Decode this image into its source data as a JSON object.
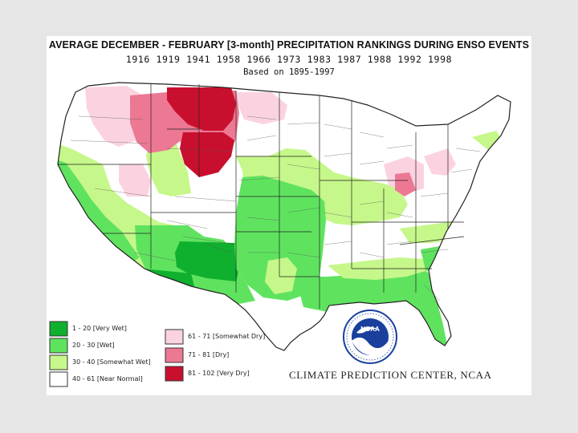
{
  "title": "AVERAGE DECEMBER - FEBRUARY [3-month] PRECIPITATION RANKINGS DURING ENSO EVENTS",
  "years": "1916 1919 1941 1958 1966 1973 1983 1987 1988 1992 1998",
  "basis": "Based on 1895-1997",
  "credit": "CLIMATE PREDICTION CENTER, NCAA",
  "logo_text": "NOAA",
  "legend": [
    {
      "label": "1 - 20 [Very Wet]",
      "color": "#0fb02e"
    },
    {
      "label": "20 - 30 [Wet]",
      "color": "#5fe35f"
    },
    {
      "label": "30 - 40 [Somewhat Wet]",
      "color": "#c6f78a"
    },
    {
      "label": "40 - 61 [Near Normal]",
      "color": "#ffffff"
    },
    {
      "label": "61 - 71 [Somewhat Dry]",
      "color": "#fbd3e0"
    },
    {
      "label": "71 - 81 [Dry]",
      "color": "#ec7894"
    },
    {
      "label": "81 - 102 [Very Dry]",
      "color": "#c8102e"
    }
  ],
  "region_categories": [
    "Very Dry",
    "Dry",
    "Somewhat Dry",
    "Near Normal",
    "Somewhat Wet",
    "Wet",
    "Very Wet"
  ]
}
